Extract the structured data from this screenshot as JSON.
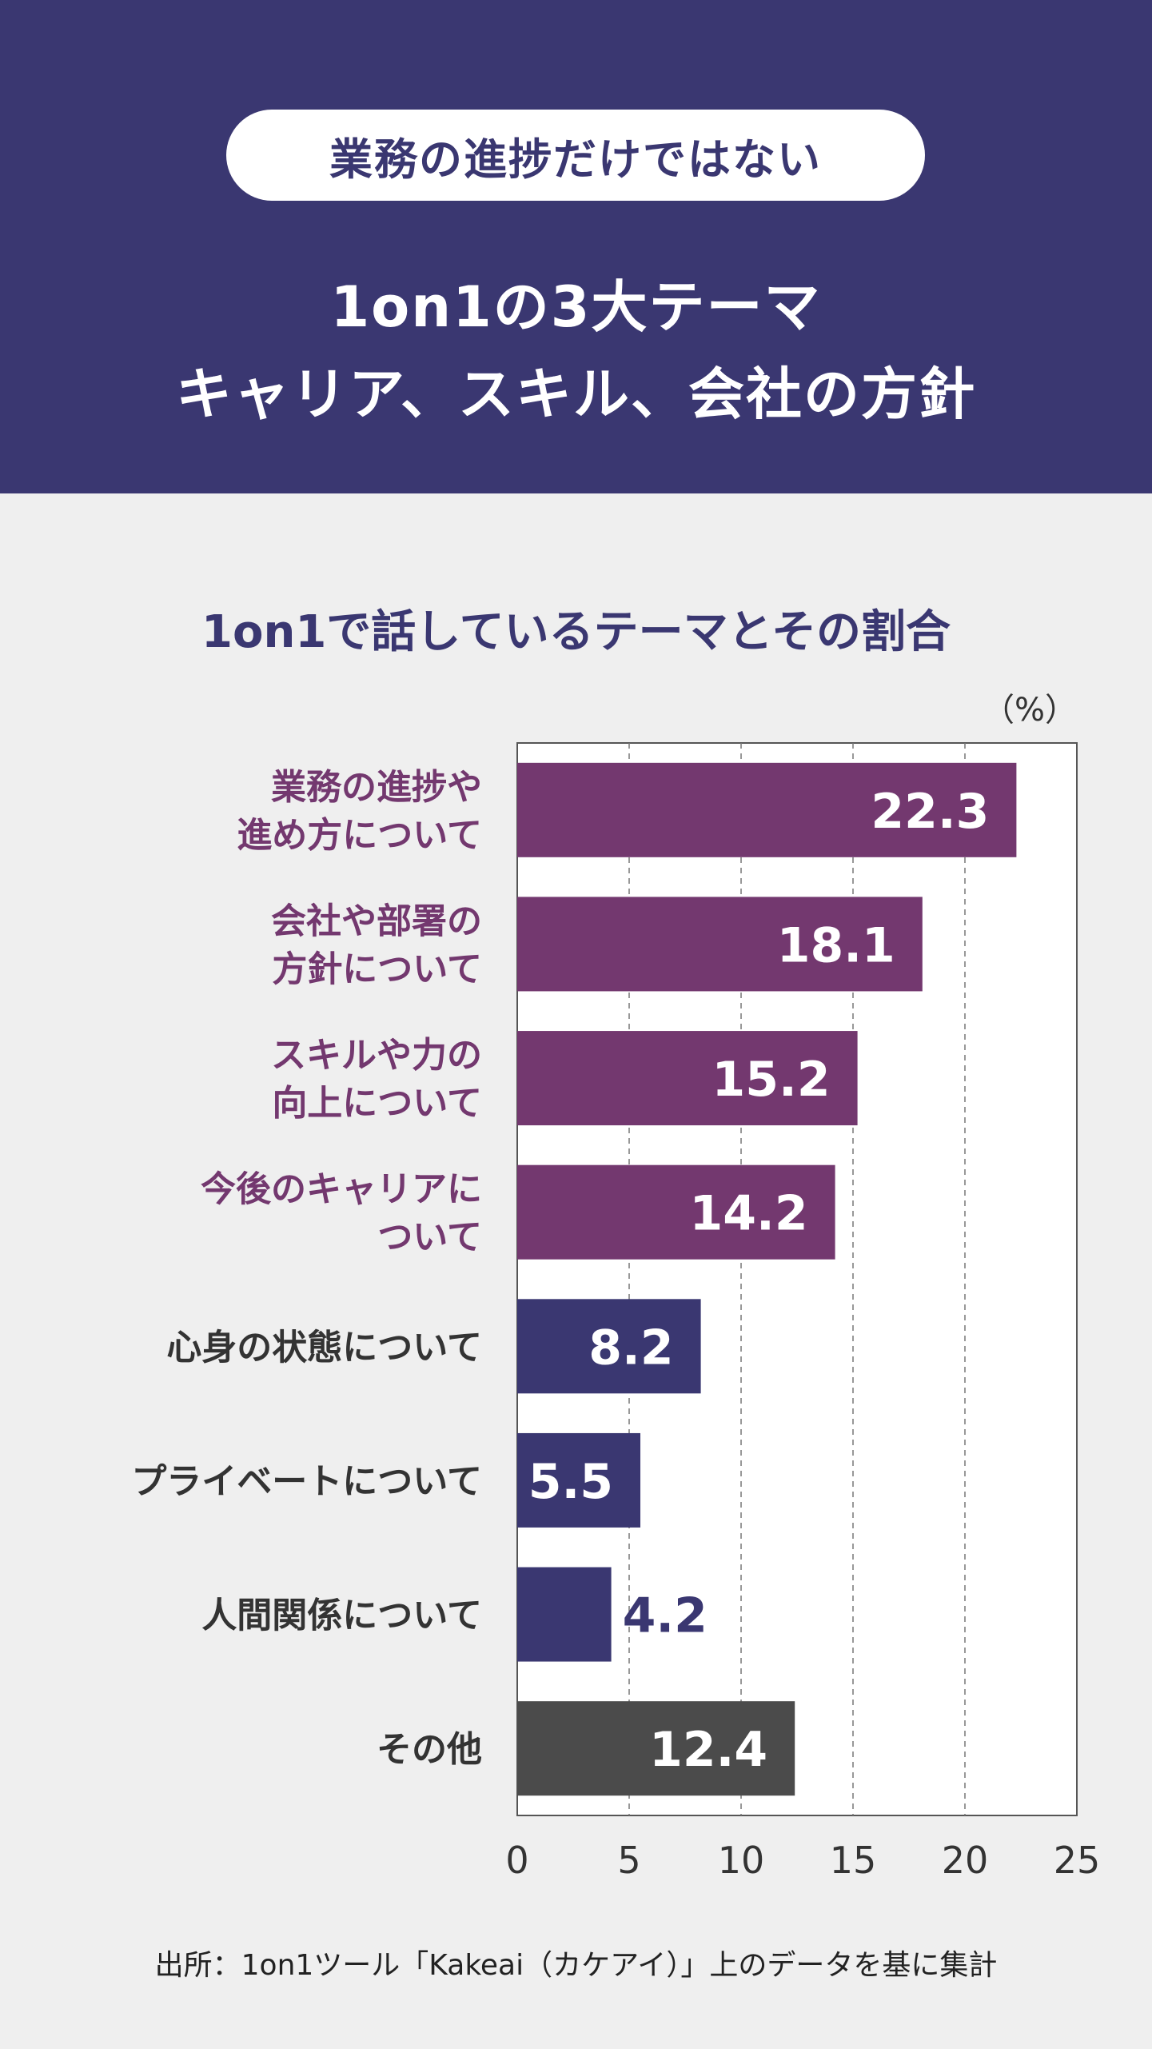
{
  "header": {
    "pill_text": "業務の進捗だけではない",
    "headline_line1": "1on1の3大テーマ",
    "headline_line2": "キャリア、スキル、会社の方針"
  },
  "colors": {
    "navy": "#3a3771",
    "purple": "#73386f",
    "gray": "#4b4b4b",
    "background": "#efefef"
  },
  "source": "出所：1on1ツール「Kakeai（カケアイ）」上のデータを基に集計",
  "chart_data": {
    "type": "bar",
    "orientation": "horizontal",
    "title": "1on1で話しているテーマとその割合",
    "unit": "（%）",
    "xlim": [
      0,
      25
    ],
    "xticks": [
      0,
      5,
      10,
      15,
      20,
      25
    ],
    "grid": "dashed vertical",
    "categories": [
      [
        "業務の進捗や",
        "進め方について"
      ],
      [
        "会社や部署の",
        "方針について"
      ],
      [
        "スキルや力の",
        "向上について"
      ],
      [
        "今後のキャリアに",
        "ついて"
      ],
      [
        "心身の状態について"
      ],
      [
        "プライベートについて"
      ],
      [
        "人間関係について"
      ],
      [
        "その他"
      ]
    ],
    "values": [
      22.3,
      18.1,
      15.2,
      14.2,
      8.2,
      5.5,
      4.2,
      12.4
    ],
    "bar_colors": [
      "purple",
      "purple",
      "purple",
      "purple",
      "navy",
      "navy",
      "navy",
      "gray"
    ]
  }
}
